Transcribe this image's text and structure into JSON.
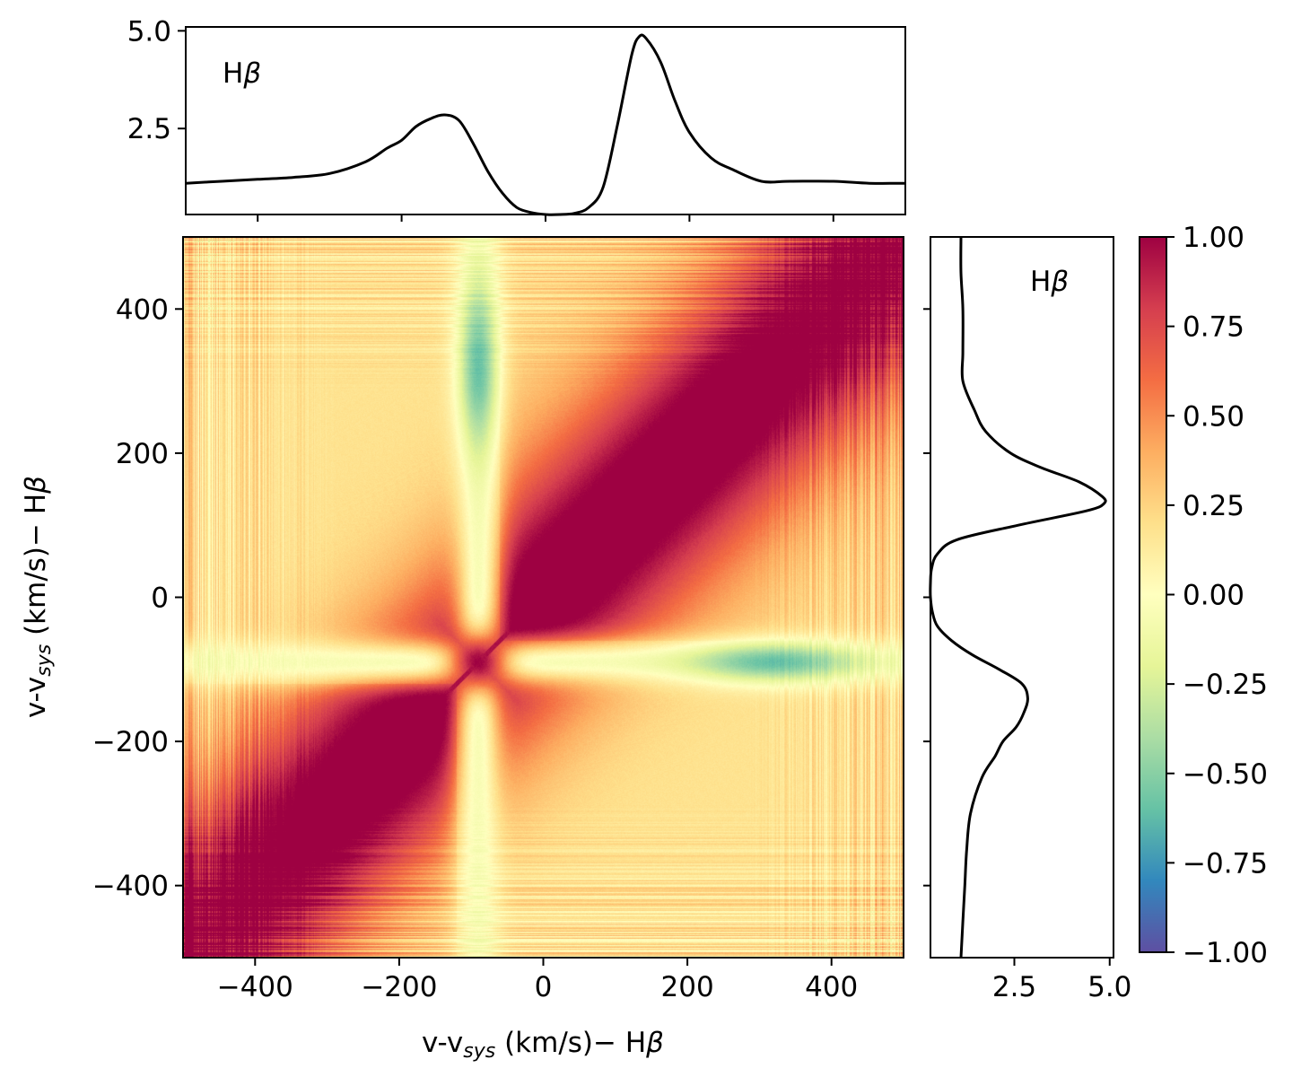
{
  "chart_data": [
    {
      "type": "heatmap",
      "name": "correlation-matrix",
      "xlabel": "v-v_sys (km/s)− Hβ",
      "ylabel": "v-v_sys (km/s)− Hβ",
      "xlim": [
        -500,
        500
      ],
      "ylim": [
        -500,
        500
      ],
      "x_ticks": [
        -400,
        -200,
        0,
        200,
        400
      ],
      "y_ticks": [
        -400,
        -200,
        0,
        200,
        400
      ],
      "x_tick_labels": [
        "−400",
        "−200",
        "0",
        "200",
        "400"
      ],
      "y_tick_labels": [
        "−400",
        "−200",
        "0",
        "200",
        "400"
      ],
      "colormap": "Spectral_r",
      "features": {
        "diagonal_value": 1.0,
        "cross_center_velocity": -90,
        "min_region_velocity": [
          -90,
          320
        ],
        "min_region_value": -0.6
      }
    },
    {
      "type": "line",
      "name": "top-profile",
      "label": "Hβ",
      "xlim": [
        -500,
        500
      ],
      "ylim": [
        0.3,
        5.1
      ],
      "y_ticks": [
        2.5,
        5.0
      ],
      "y_tick_labels": [
        "2.5",
        "5.0"
      ],
      "x_ticks": [
        -400,
        -200,
        0,
        200,
        400
      ],
      "x": [
        -500,
        -450,
        -400,
        -350,
        -300,
        -250,
        -220,
        -200,
        -180,
        -160,
        -140,
        -120,
        -100,
        -80,
        -60,
        -40,
        -20,
        0,
        20,
        40,
        60,
        80,
        100,
        120,
        130,
        140,
        160,
        180,
        200,
        230,
        260,
        300,
        340,
        400,
        450,
        500
      ],
      "y": [
        1.1,
        1.15,
        1.2,
        1.25,
        1.35,
        1.65,
        2.0,
        2.2,
        2.55,
        2.75,
        2.85,
        2.7,
        2.1,
        1.4,
        0.85,
        0.48,
        0.35,
        0.3,
        0.3,
        0.33,
        0.48,
        1.0,
        2.6,
        4.4,
        4.85,
        4.8,
        4.2,
        3.2,
        2.4,
        1.75,
        1.45,
        1.15,
        1.15,
        1.15,
        1.1,
        1.1
      ]
    },
    {
      "type": "line",
      "name": "right-profile",
      "label": "Hβ",
      "orientation": "vertical",
      "xlim": [
        0.3,
        5.1
      ],
      "ylim": [
        -500,
        500
      ],
      "x_ticks": [
        2.5,
        5.0
      ],
      "x_tick_labels": [
        "2.5",
        "5.0"
      ],
      "y_ticks": [
        -400,
        -200,
        0,
        200,
        400
      ],
      "v": [
        -500,
        -450,
        -400,
        -350,
        -300,
        -250,
        -220,
        -200,
        -180,
        -160,
        -140,
        -120,
        -100,
        -80,
        -60,
        -40,
        -20,
        0,
        20,
        40,
        60,
        80,
        100,
        120,
        130,
        140,
        160,
        180,
        200,
        230,
        260,
        300,
        340,
        400,
        450,
        500
      ],
      "flux": [
        1.1,
        1.15,
        1.2,
        1.25,
        1.35,
        1.65,
        2.0,
        2.2,
        2.55,
        2.75,
        2.85,
        2.7,
        2.1,
        1.4,
        0.85,
        0.48,
        0.35,
        0.3,
        0.3,
        0.33,
        0.48,
        1.0,
        2.6,
        4.4,
        4.85,
        4.8,
        4.2,
        3.2,
        2.4,
        1.75,
        1.45,
        1.15,
        1.15,
        1.15,
        1.1,
        1.1
      ]
    },
    {
      "type": "colorbar",
      "name": "colorbar",
      "vmin": -1.0,
      "vmax": 1.0,
      "ticks": [
        1.0,
        0.75,
        0.5,
        0.25,
        0.0,
        -0.25,
        -0.5,
        -0.75,
        -1.0
      ],
      "tick_labels": [
        "1.00",
        "0.75",
        "0.50",
        "0.25",
        "0.00",
        "−0.25",
        "−0.50",
        "−0.75",
        "−1.00"
      ]
    }
  ],
  "colors": {
    "line": "#000000",
    "spectral": [
      "#5e4fa2",
      "#3288bd",
      "#66c2a5",
      "#abdda4",
      "#e6f598",
      "#ffffbf",
      "#fee08b",
      "#fdae61",
      "#f46d43",
      "#d53e4f",
      "#9e0142"
    ]
  }
}
